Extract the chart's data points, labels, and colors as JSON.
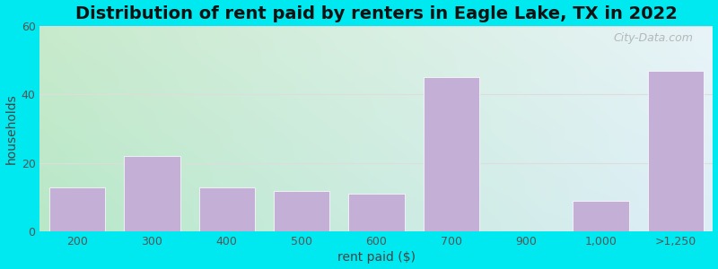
{
  "title": "Distribution of rent paid by renters in Eagle Lake, TX in 2022",
  "xlabel": "rent paid ($)",
  "ylabel": "households",
  "categories": [
    "200",
    "300",
    "400",
    "500",
    "600",
    "700",
    "900",
    "1,000",
    ">1,250"
  ],
  "values": [
    13,
    22,
    13,
    12,
    11,
    45,
    0,
    9,
    47
  ],
  "bar_color": "#c4afd6",
  "bar_edgecolor": "#c4afd6",
  "ylim": [
    0,
    60
  ],
  "yticks": [
    0,
    20,
    40,
    60
  ],
  "background_outer": "#00e8f0",
  "grad_top_left": "#c8eacc",
  "grad_top_right": "#e8f4f8",
  "grad_bottom_left": "#b8e8c8",
  "grad_bottom_right": "#ddeef8",
  "grid_color": "#dddddd",
  "title_fontsize": 14,
  "axis_label_fontsize": 10,
  "tick_fontsize": 9,
  "watermark_text": "City-Data.com"
}
